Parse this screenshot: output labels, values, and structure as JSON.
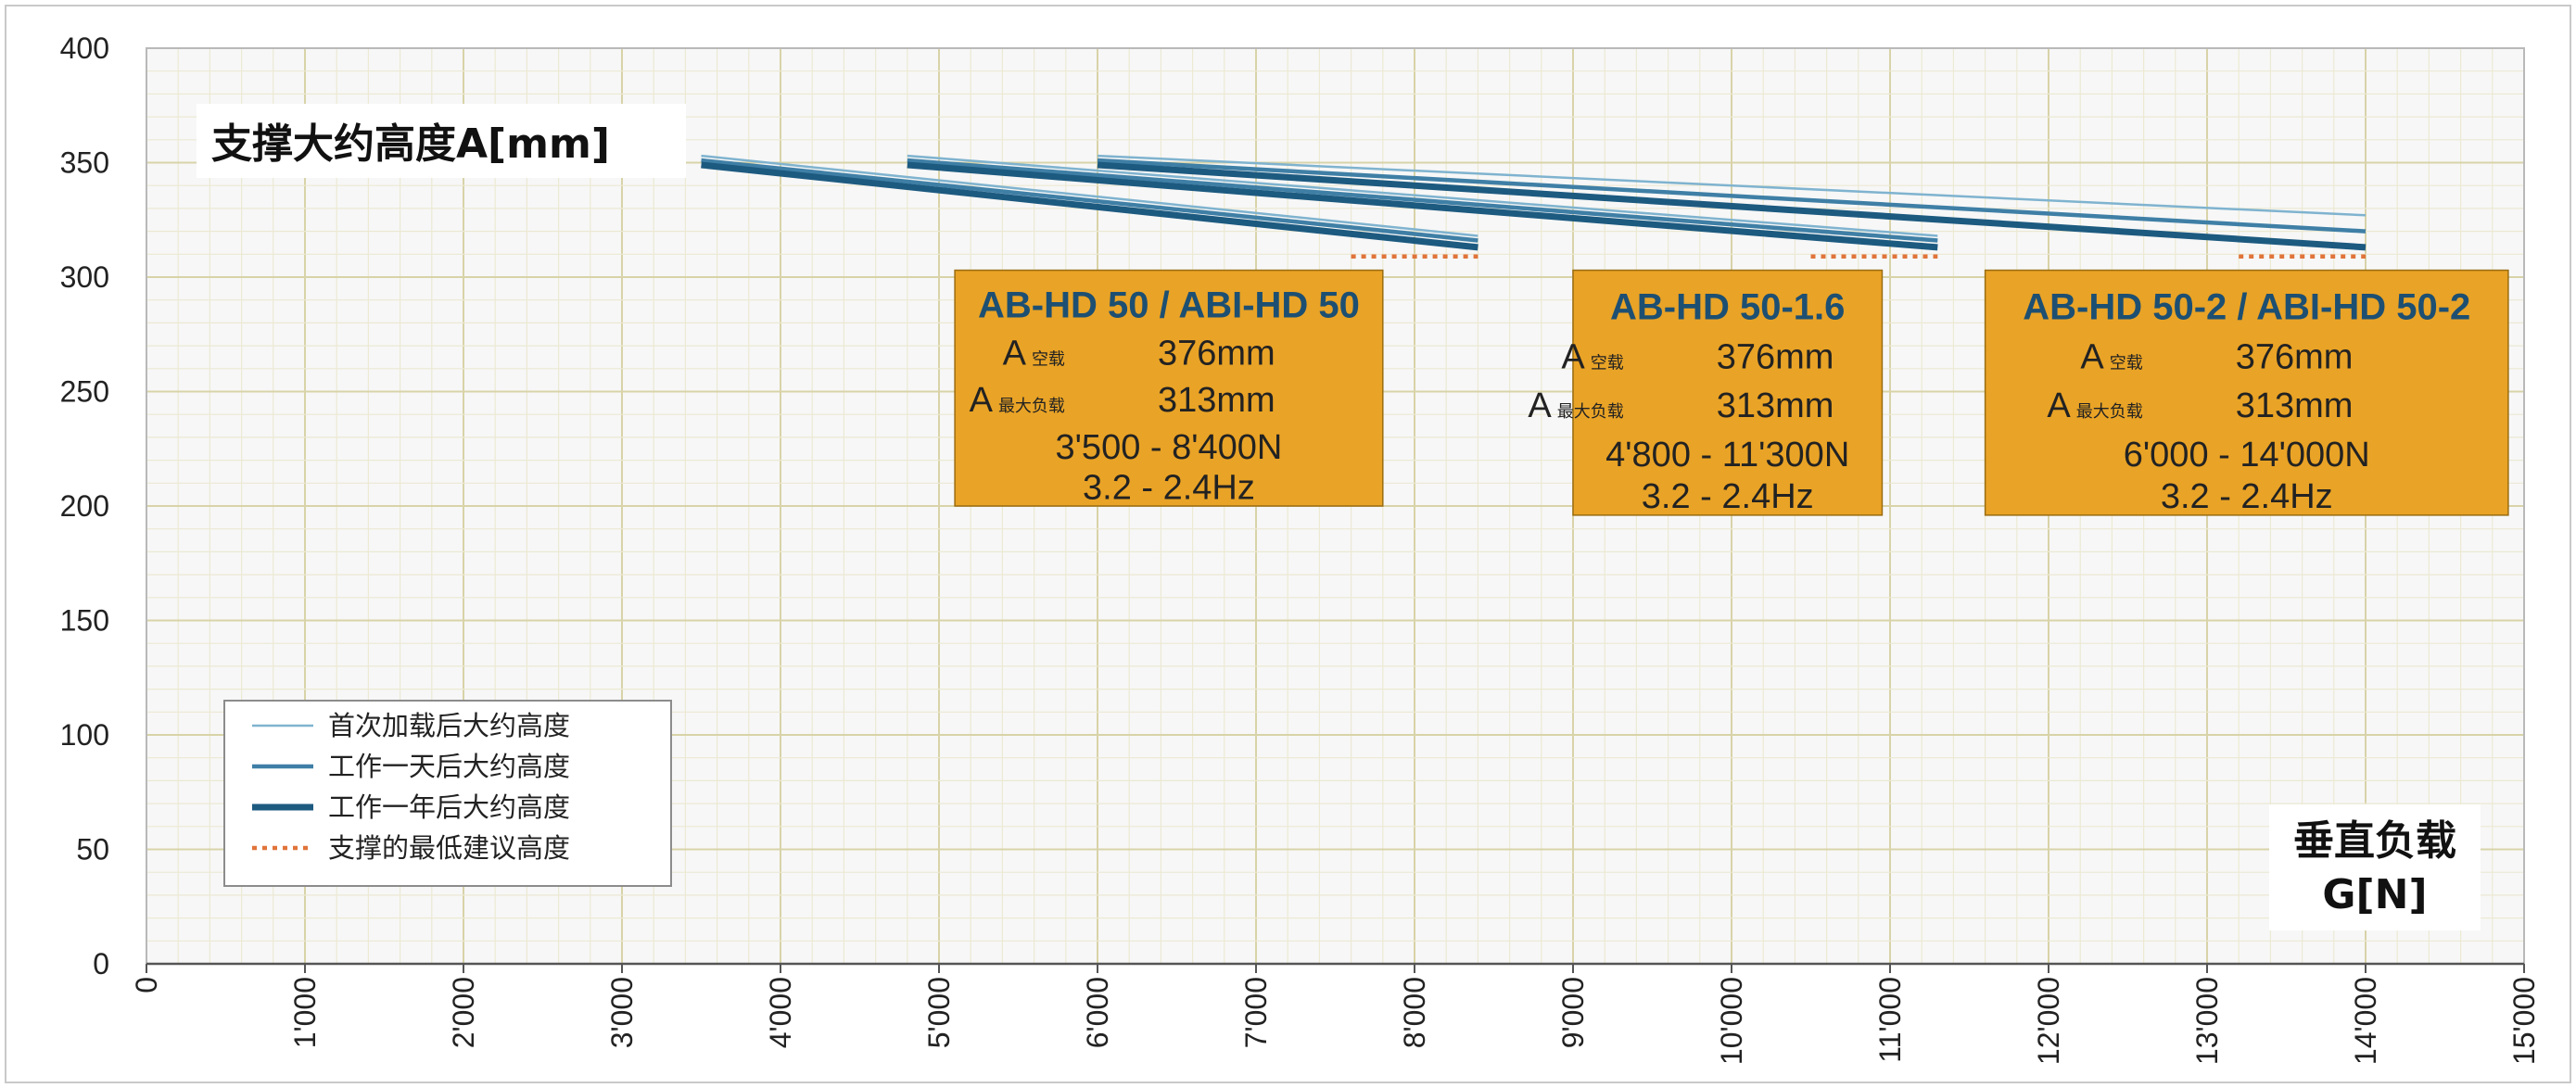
{
  "chart_data": {
    "type": "line",
    "ylabel": "支撑大约高度A[mm]",
    "xlabel_line1": "垂直负载",
    "xlabel_line2": "G[N]",
    "xlim": [
      0,
      15000
    ],
    "ylim": [
      0,
      400
    ],
    "x_ticks": [
      "0",
      "1'000",
      "2'000",
      "3'000",
      "4'000",
      "5'000",
      "6'000",
      "7'000",
      "8'000",
      "9'000",
      "10'000",
      "11'000",
      "12'000",
      "13'000",
      "14'000",
      "15'000"
    ],
    "y_ticks": [
      "0",
      "50",
      "100",
      "150",
      "200",
      "250",
      "300",
      "350",
      "400"
    ],
    "grid": true,
    "colors": {
      "first_load": "#7fb3cf",
      "one_day": "#3f7fa6",
      "one_year": "#1d5a80",
      "min_height": "#e0743a",
      "annotation_fill": "#e9a326",
      "grid_major": "#d8d3a8",
      "grid_minor": "#ece9d3",
      "plot_bg": "#f7f7f7"
    },
    "series": [
      {
        "name": "首次加载后大约高度",
        "group": "AB-HD 50",
        "style": "first_load",
        "x": [
          3500,
          8400
        ],
        "y": [
          353,
          318
        ]
      },
      {
        "name": "工作一天后大约高度",
        "group": "AB-HD 50",
        "style": "one_day",
        "x": [
          3500,
          8400
        ],
        "y": [
          351,
          316
        ]
      },
      {
        "name": "工作一年后大约高度",
        "group": "AB-HD 50",
        "style": "one_year",
        "x": [
          3500,
          8400
        ],
        "y": [
          349,
          313
        ]
      },
      {
        "name": "支撑的最低建议高度",
        "group": "AB-HD 50",
        "style": "min_height",
        "x": [
          7600,
          8400
        ],
        "y": [
          309,
          309
        ]
      },
      {
        "name": "首次加载后大约高度",
        "group": "AB-HD 50-1.6",
        "style": "first_load",
        "x": [
          4800,
          11300
        ],
        "y": [
          353,
          318
        ]
      },
      {
        "name": "工作一天后大约高度",
        "group": "AB-HD 50-1.6",
        "style": "one_day",
        "x": [
          4800,
          11300
        ],
        "y": [
          351,
          316
        ]
      },
      {
        "name": "工作一年后大约高度",
        "group": "AB-HD 50-1.6",
        "style": "one_year",
        "x": [
          4800,
          11300
        ],
        "y": [
          349,
          313
        ]
      },
      {
        "name": "支撑的最低建议高度",
        "group": "AB-HD 50-1.6",
        "style": "min_height",
        "x": [
          10500,
          11300
        ],
        "y": [
          309,
          309
        ]
      },
      {
        "name": "首次加载后大约高度",
        "group": "AB-HD 50-2",
        "style": "first_load",
        "x": [
          6000,
          14000
        ],
        "y": [
          353,
          327
        ]
      },
      {
        "name": "工作一天后大约高度",
        "group": "AB-HD 50-2",
        "style": "one_day",
        "x": [
          6000,
          14000
        ],
        "y": [
          351,
          320
        ]
      },
      {
        "name": "工作一年后大约高度",
        "group": "AB-HD 50-2",
        "style": "one_year",
        "x": [
          6000,
          14000
        ],
        "y": [
          349,
          313
        ]
      },
      {
        "name": "支撑的最低建议高度",
        "group": "AB-HD 50-2",
        "style": "min_height",
        "x": [
          13200,
          14000
        ],
        "y": [
          309,
          309
        ]
      }
    ],
    "legend": {
      "placement": "bottom-left",
      "entries": [
        {
          "label": "首次加载后大约高度",
          "style": "first_load"
        },
        {
          "label": "工作一天后大约高度",
          "style": "one_day"
        },
        {
          "label": "工作一年后大约高度",
          "style": "one_year"
        },
        {
          "label": "支撑的最低建议高度",
          "style": "min_height"
        }
      ]
    },
    "annotations": [
      {
        "title": "AB-HD 50  /  ABI-HD 50",
        "rows": [
          {
            "label": "A",
            "sub": "空载",
            "value": "376mm"
          },
          {
            "label": "A",
            "sub": "最大负载",
            "value": "313mm"
          }
        ],
        "range": "3'500 - 8'400N",
        "freq": "3.2 - 2.4Hz",
        "x_range": [
          5100,
          7800
        ],
        "y_range": [
          200,
          303
        ]
      },
      {
        "title": "AB-HD 50-1.6",
        "rows": [
          {
            "label": "A",
            "sub": "空载",
            "value": "376mm"
          },
          {
            "label": "A",
            "sub": "最大负载",
            "value": "313mm"
          }
        ],
        "range": "4'800 - 11'300N",
        "freq": "3.2 - 2.4Hz",
        "x_range": [
          9000,
          10950
        ],
        "y_range": [
          196,
          303
        ]
      },
      {
        "title": "AB-HD 50-2  /  ABI-HD 50-2",
        "rows": [
          {
            "label": "A",
            "sub": "空载",
            "value": "376mm"
          },
          {
            "label": "A",
            "sub": "最大负载",
            "value": "313mm"
          }
        ],
        "range": "6'000 - 14'000N",
        "freq": "3.2 - 2.4Hz",
        "x_range": [
          11600,
          14900
        ],
        "y_range": [
          196,
          303
        ]
      }
    ]
  }
}
